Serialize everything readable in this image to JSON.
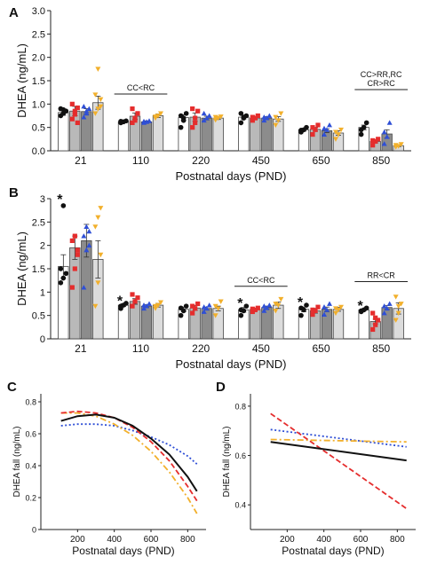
{
  "colors": {
    "cc_bar": "#ffffff",
    "cr_bar": "#b9b9b9",
    "rc_bar": "#8c8c8c",
    "rr_bar": "#dcdcdc",
    "cc_dot": "#111111",
    "cr_dot": "#e52d2d",
    "rc_dot": "#2f4fd6",
    "rr_dot": "#f2b02c",
    "axis": "#222222"
  },
  "chart_data": [
    {
      "panel": "A",
      "type": "bar",
      "ylabel": "DHEA (ng/mL)",
      "xlabel": "Postnatal days (PND)",
      "ylim": [
        0,
        3.0
      ],
      "yticks": [
        "0.0",
        "0.5",
        "1.0",
        "1.5",
        "2.0",
        "2.5",
        "3.0"
      ],
      "categories": [
        "21",
        "110",
        "220",
        "450",
        "650",
        "850"
      ],
      "series": [
        {
          "key": "cc",
          "values": [
            0.82,
            0.62,
            0.71,
            0.72,
            0.45,
            0.5
          ],
          "errors": [
            0.06,
            0.02,
            0.06,
            0.04,
            0.03,
            0.05
          ]
        },
        {
          "key": "cr",
          "values": [
            0.85,
            0.74,
            0.72,
            0.7,
            0.46,
            0.2
          ],
          "errors": [
            0.1,
            0.07,
            0.09,
            0.03,
            0.04,
            0.03
          ]
        },
        {
          "key": "rc",
          "values": [
            0.84,
            0.62,
            0.7,
            0.7,
            0.43,
            0.36
          ],
          "errors": [
            0.06,
            0.02,
            0.04,
            0.03,
            0.04,
            0.09
          ]
        },
        {
          "key": "rr",
          "values": [
            1.03,
            0.75,
            0.7,
            0.68,
            0.38,
            0.11
          ],
          "errors": [
            0.14,
            0.04,
            0.03,
            0.05,
            0.05,
            0.02
          ]
        }
      ],
      "points": [
        {
          "series": "cc",
          "cat": 0,
          "ys": [
            0.75,
            0.8,
            0.85,
            0.9,
            0.88
          ]
        },
        {
          "series": "cr",
          "cat": 0,
          "ys": [
            0.68,
            0.78,
            0.92,
            1.0,
            0.85,
            0.6
          ]
        },
        {
          "series": "rc",
          "cat": 0,
          "ys": [
            0.72,
            0.85,
            0.9,
            0.95,
            0.8
          ]
        },
        {
          "series": "rr",
          "cat": 0,
          "ys": [
            0.8,
            0.9,
            1.1,
            1.2,
            1.75,
            0.95
          ]
        },
        {
          "series": "cc",
          "cat": 1,
          "ys": [
            0.6,
            0.62,
            0.64,
            0.63
          ]
        },
        {
          "series": "cr",
          "cat": 1,
          "ys": [
            0.6,
            0.7,
            0.8,
            0.9,
            0.65
          ]
        },
        {
          "series": "rc",
          "cat": 1,
          "ys": [
            0.6,
            0.62,
            0.64,
            0.63
          ]
        },
        {
          "series": "rr",
          "cat": 1,
          "ys": [
            0.7,
            0.75,
            0.8,
            0.73
          ]
        },
        {
          "series": "cc",
          "cat": 2,
          "ys": [
            0.5,
            0.7,
            0.8,
            0.75,
            0.65
          ]
        },
        {
          "series": "cr",
          "cat": 2,
          "ys": [
            0.5,
            0.7,
            0.85,
            0.9,
            0.6
          ]
        },
        {
          "series": "rc",
          "cat": 2,
          "ys": [
            0.65,
            0.7,
            0.75,
            0.8
          ]
        },
        {
          "series": "rr",
          "cat": 2,
          "ys": [
            0.66,
            0.7,
            0.73,
            0.72
          ]
        },
        {
          "series": "cc",
          "cat": 3,
          "ys": [
            0.6,
            0.7,
            0.75,
            0.8,
            0.72
          ]
        },
        {
          "series": "cr",
          "cat": 3,
          "ys": [
            0.65,
            0.7,
            0.75,
            0.72
          ]
        },
        {
          "series": "rc",
          "cat": 3,
          "ys": [
            0.65,
            0.7,
            0.75,
            0.72
          ]
        },
        {
          "series": "rr",
          "cat": 3,
          "ys": [
            0.55,
            0.65,
            0.8,
            0.72
          ]
        },
        {
          "series": "cc",
          "cat": 4,
          "ys": [
            0.4,
            0.45,
            0.5,
            0.44
          ]
        },
        {
          "series": "cr",
          "cat": 4,
          "ys": [
            0.35,
            0.45,
            0.55,
            0.5
          ]
        },
        {
          "series": "rc",
          "cat": 4,
          "ys": [
            0.35,
            0.45,
            0.55,
            0.48
          ]
        },
        {
          "series": "rr",
          "cat": 4,
          "ys": [
            0.25,
            0.35,
            0.45,
            0.4
          ]
        },
        {
          "series": "cc",
          "cat": 5,
          "ys": [
            0.35,
            0.5,
            0.6,
            0.45
          ]
        },
        {
          "series": "cr",
          "cat": 5,
          "ys": [
            0.12,
            0.2,
            0.25,
            0.22
          ]
        },
        {
          "series": "rc",
          "cat": 5,
          "ys": [
            0.15,
            0.3,
            0.6,
            0.4
          ]
        },
        {
          "series": "rr",
          "cat": 5,
          "ys": [
            0.08,
            0.1,
            0.14,
            0.12
          ]
        }
      ],
      "annotations": [
        {
          "text": "CC<RC",
          "cats": [
            1,
            1
          ]
        },
        {
          "text": "CC>RR,RC",
          "text2": "CR>RC",
          "cats": [
            5,
            5
          ]
        }
      ]
    },
    {
      "panel": "B",
      "type": "bar",
      "ylabel": "DHEA (ng/mL)",
      "xlabel": "Postnatal days (PND)",
      "ylim": [
        0,
        3.0
      ],
      "yticks": [
        "0",
        "0.5",
        "1",
        "1.5",
        "2",
        "2.5",
        "3"
      ],
      "categories": [
        "21",
        "110",
        "220",
        "450",
        "650",
        "850"
      ],
      "series": [
        {
          "key": "cc",
          "values": [
            1.55,
            0.72,
            0.63,
            0.62,
            0.63,
            0.62
          ],
          "errors": [
            0.25,
            0.03,
            0.05,
            0.05,
            0.05,
            0.02
          ]
        },
        {
          "key": "cr",
          "values": [
            1.95,
            0.8,
            0.66,
            0.63,
            0.6,
            0.37
          ],
          "errors": [
            0.25,
            0.06,
            0.05,
            0.02,
            0.05,
            0.05
          ]
        },
        {
          "key": "rc",
          "values": [
            2.1,
            0.7,
            0.65,
            0.67,
            0.63,
            0.67
          ],
          "errors": [
            0.35,
            0.03,
            0.03,
            0.03,
            0.05,
            0.04
          ]
        },
        {
          "key": "rr",
          "values": [
            1.7,
            0.72,
            0.65,
            0.72,
            0.63,
            0.65
          ],
          "errors": [
            0.4,
            0.04,
            0.05,
            0.07,
            0.04,
            0.12
          ]
        }
      ],
      "points": [
        {
          "series": "cc",
          "cat": 0,
          "ys": [
            1.2,
            1.3,
            1.4,
            1.5,
            2.85
          ]
        },
        {
          "series": "cr",
          "cat": 0,
          "ys": [
            1.1,
            1.5,
            1.8,
            2.1,
            2.2,
            1.9
          ]
        },
        {
          "series": "rc",
          "cat": 0,
          "ys": [
            1.1,
            1.9,
            2.0,
            2.2,
            2.4,
            2.3
          ]
        },
        {
          "series": "rr",
          "cat": 0,
          "ys": [
            0.7,
            1.2,
            1.8,
            2.4,
            2.6,
            2.8
          ]
        },
        {
          "series": "cc",
          "cat": 1,
          "ys": [
            0.65,
            0.72,
            0.76,
            0.7
          ]
        },
        {
          "series": "cr",
          "cat": 1,
          "ys": [
            0.7,
            0.8,
            0.88,
            0.95
          ]
        },
        {
          "series": "rc",
          "cat": 1,
          "ys": [
            0.65,
            0.7,
            0.75,
            0.72
          ]
        },
        {
          "series": "rr",
          "cat": 1,
          "ys": [
            0.65,
            0.72,
            0.78,
            0.7
          ]
        },
        {
          "series": "cc",
          "cat": 2,
          "ys": [
            0.5,
            0.6,
            0.7,
            0.66
          ]
        },
        {
          "series": "cr",
          "cat": 2,
          "ys": [
            0.55,
            0.65,
            0.75,
            0.7
          ]
        },
        {
          "series": "rc",
          "cat": 2,
          "ys": [
            0.58,
            0.65,
            0.72,
            0.68
          ]
        },
        {
          "series": "rr",
          "cat": 2,
          "ys": [
            0.5,
            0.65,
            0.8,
            0.7
          ]
        },
        {
          "series": "cc",
          "cat": 3,
          "ys": [
            0.5,
            0.6,
            0.7,
            0.62
          ]
        },
        {
          "series": "cr",
          "cat": 3,
          "ys": [
            0.58,
            0.62,
            0.66,
            0.64
          ]
        },
        {
          "series": "rc",
          "cat": 3,
          "ys": [
            0.6,
            0.66,
            0.72,
            0.7
          ]
        },
        {
          "series": "rr",
          "cat": 3,
          "ys": [
            0.6,
            0.72,
            0.85,
            0.75
          ]
        },
        {
          "series": "cc",
          "cat": 4,
          "ys": [
            0.5,
            0.62,
            0.72,
            0.66
          ]
        },
        {
          "series": "cr",
          "cat": 4,
          "ys": [
            0.52,
            0.6,
            0.68,
            0.62
          ]
        },
        {
          "series": "rc",
          "cat": 4,
          "ys": [
            0.52,
            0.62,
            0.75,
            0.68
          ]
        },
        {
          "series": "rr",
          "cat": 4,
          "ys": [
            0.55,
            0.62,
            0.68,
            0.65
          ]
        },
        {
          "series": "cc",
          "cat": 5,
          "ys": [
            0.58,
            0.62,
            0.66,
            0.6
          ]
        },
        {
          "series": "cr",
          "cat": 5,
          "ys": [
            0.2,
            0.3,
            0.4,
            0.55,
            0.45
          ]
        },
        {
          "series": "rc",
          "cat": 5,
          "ys": [
            0.55,
            0.65,
            0.75,
            0.7
          ]
        },
        {
          "series": "rr",
          "cat": 5,
          "ys": [
            0.4,
            0.55,
            0.75,
            0.9,
            0.7
          ]
        }
      ],
      "stars": [
        {
          "cat": 0,
          "series": "cc",
          "y": 3.0
        },
        {
          "cat": 1,
          "series": "cc",
          "y": 0.83
        },
        {
          "cat": 3,
          "series": "cc",
          "y": 0.78
        },
        {
          "cat": 4,
          "series": "cc",
          "y": 0.8
        },
        {
          "cat": 5,
          "series": "cc",
          "y": 0.72
        }
      ],
      "annotations": [
        {
          "text": "CC<RC",
          "cats": [
            3,
            3
          ]
        },
        {
          "text": "RR<CR",
          "cats": [
            5,
            5
          ]
        }
      ]
    },
    {
      "panel": "C",
      "type": "line",
      "ylabel": "DHEA fall (ng/mL)",
      "xlabel": "Postnatal days (PND)",
      "xlim": [
        0,
        900
      ],
      "ylim": [
        0,
        0.85
      ],
      "xticks": [
        200,
        400,
        600,
        800
      ],
      "yticks": [
        0,
        0.2,
        0.4,
        0.6,
        0.8
      ],
      "series": [
        {
          "key": "cc",
          "style": "solid",
          "x": [
            110,
            200,
            300,
            400,
            500,
            600,
            700,
            800,
            850
          ],
          "y": [
            0.68,
            0.71,
            0.72,
            0.7,
            0.65,
            0.57,
            0.47,
            0.33,
            0.24
          ]
        },
        {
          "key": "cr",
          "style": "dashed",
          "x": [
            110,
            200,
            300,
            400,
            500,
            600,
            700,
            800,
            850
          ],
          "y": [
            0.73,
            0.74,
            0.73,
            0.7,
            0.64,
            0.55,
            0.43,
            0.27,
            0.18
          ]
        },
        {
          "key": "rc",
          "style": "dotted",
          "x": [
            110,
            200,
            300,
            400,
            500,
            600,
            700,
            800,
            850
          ],
          "y": [
            0.65,
            0.66,
            0.66,
            0.65,
            0.62,
            0.58,
            0.53,
            0.46,
            0.41
          ]
        },
        {
          "key": "rr",
          "style": "dashdot",
          "x": [
            110,
            200,
            300,
            400,
            500,
            600,
            700,
            800,
            850
          ],
          "y": [
            0.73,
            0.73,
            0.71,
            0.66,
            0.59,
            0.49,
            0.36,
            0.2,
            0.1
          ]
        }
      ]
    },
    {
      "panel": "D",
      "type": "line",
      "ylabel": "DHEA fall (ng/mL)",
      "xlabel": "Postnatal days (PND)",
      "xlim": [
        0,
        900
      ],
      "ylim": [
        0.3,
        0.85
      ],
      "xticks": [
        200,
        400,
        600,
        800
      ],
      "yticks": [
        0.4,
        0.6,
        0.8
      ],
      "series": [
        {
          "key": "cc",
          "style": "solid",
          "x": [
            110,
            850
          ],
          "y": [
            0.655,
            0.58
          ]
        },
        {
          "key": "cr",
          "style": "dashed",
          "x": [
            110,
            850
          ],
          "y": [
            0.77,
            0.385
          ]
        },
        {
          "key": "rc",
          "style": "dotted",
          "x": [
            110,
            850
          ],
          "y": [
            0.705,
            0.635
          ]
        },
        {
          "key": "rr",
          "style": "dashdot",
          "x": [
            110,
            850
          ],
          "y": [
            0.665,
            0.655
          ]
        }
      ]
    }
  ]
}
